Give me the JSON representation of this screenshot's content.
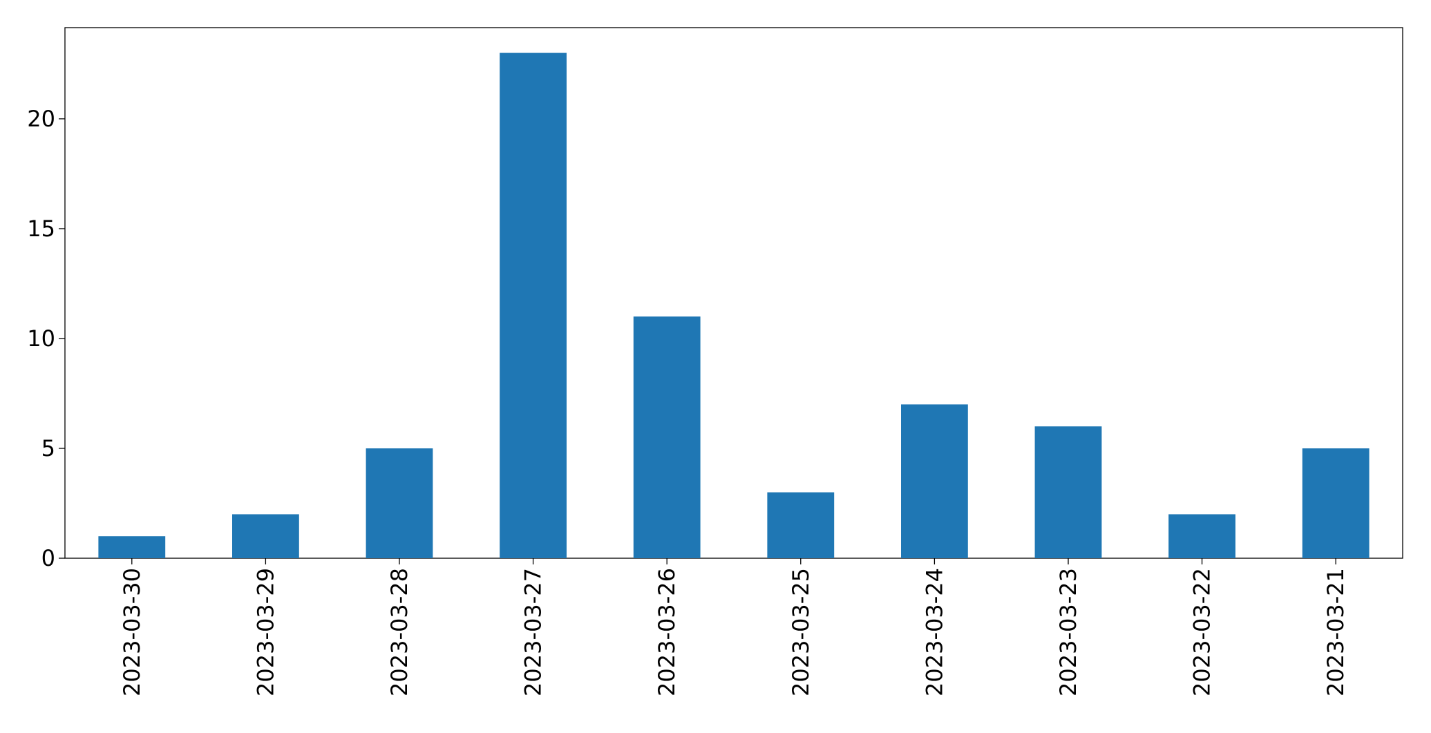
{
  "chart_data": {
    "type": "bar",
    "categories": [
      "2023-03-30",
      "2023-03-29",
      "2023-03-28",
      "2023-03-27",
      "2023-03-26",
      "2023-03-25",
      "2023-03-24",
      "2023-03-23",
      "2023-03-22",
      "2023-03-21"
    ],
    "values": [
      1,
      2,
      5,
      23,
      11,
      3,
      7,
      6,
      2,
      5
    ],
    "color": "#1f77b4",
    "ylim": [
      0,
      24.15
    ],
    "yticks": [
      0,
      5,
      10,
      15,
      20
    ],
    "grid": false
  }
}
